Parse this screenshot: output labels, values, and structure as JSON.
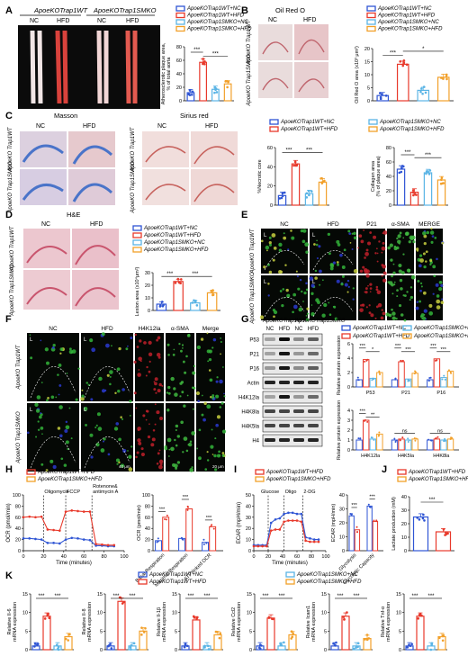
{
  "colors": {
    "wt_nc": "#2f55d4",
    "wt_hfd": "#e8392b",
    "smko_nc": "#5ab4e5",
    "smko_hfd": "#f2a02a",
    "bg_dark": "#111111",
    "stain_pink": "#e4a7b3",
    "masson_blue": "#4a74c9"
  },
  "legend4": {
    "wt_nc": "ApoeKOTrap1WT+NC",
    "wt_hfd": "ApoeKOTrap1WT+HFD",
    "smko_nc": "ApoeKOTrap1SMKO+NC",
    "smko_hfd": "ApoeKOTrap1SMKO+HFD"
  },
  "legend2": {
    "wt_hfd": "ApoeKOTrap1WT+HFD",
    "smko_hfd": "ApoeKOTrap1SMKO+HFD"
  },
  "sig": {
    "s3": "***",
    "s2": "**",
    "s1": "*",
    "ns": "ns"
  },
  "panelA": {
    "label": "A",
    "group_wt": "ApoeKOTrap1WT",
    "group_smko": "ApoeKOTrap1SMKO",
    "nc": "NC",
    "hfd": "HFD",
    "ylabel1": "Atherosclerotic plaque area,",
    "ylabel2": "% of total aorta",
    "ticks": [
      "0",
      "20",
      "40",
      "60",
      "80"
    ]
  },
  "panelB": {
    "label": "B",
    "title": "Oil Red O",
    "nc": "NC",
    "hfd": "HFD",
    "row_wt": "ApoeKO Trap1WT",
    "row_smko": "ApoeKO Trap1SMKO",
    "ylabel": "Oil Red O area (x10³ μm²)",
    "ticks": [
      "0",
      "5",
      "10",
      "15",
      "20"
    ]
  },
  "panelC": {
    "label": "C",
    "title_masson": "Masson",
    "title_sirius": "Sirius red",
    "nc": "NC",
    "hfd": "HFD",
    "row_wt": "ApoeKO Trap1WT",
    "row_smko": "ApoeKO Trap1SMKO",
    "ylabel_necrotic": "%Necrotic core",
    "ticks_necrotic": [
      "0",
      "20",
      "40",
      "60"
    ],
    "ylabel_collagen1": "Collagen area",
    "ylabel_collagen2": "(% of plaque area)",
    "ticks_collagen": [
      "0",
      "20",
      "40",
      "60",
      "80"
    ]
  },
  "panelD": {
    "label": "D",
    "title": "H&E",
    "nc": "NC",
    "hfd": "HFD",
    "row_wt": "ApoeKO Trap1WT",
    "row_smko": "ApoeKO Trap1SMKO",
    "ylabel": "Lesion area (x10⁴μm²)",
    "ticks": [
      "0",
      "10",
      "20",
      "30"
    ]
  },
  "panelE": {
    "label": "E",
    "cols": [
      "NC",
      "HFD",
      "P21",
      "α-SMA",
      "MERGE"
    ],
    "row_wt": "ApoeKO Trap1WT",
    "row_smko": "ApoeKO Trap1SMKO",
    "L": "L"
  },
  "panelF": {
    "label": "F",
    "cols": [
      "NC",
      "HFD",
      "H4K12la",
      "α-SMA",
      "Merge"
    ],
    "row_wt": "ApoeKO Trap1WT",
    "row_smko": "ApoeKO Trap1SMKO",
    "L": "L",
    "scale1": "40 μm",
    "scale2": "20 μm"
  },
  "panelG": {
    "label": "G",
    "group_wt": "ApoeKOTrap1WT",
    "group_smko": "ApoeKOTrap1SMKO",
    "lanes": [
      "NC",
      "HFD",
      "NC",
      "HFD"
    ],
    "blots": [
      "P53",
      "P21",
      "P16",
      "Actin",
      "H4K12la",
      "H4K8la",
      "H4K5la",
      "H4"
    ],
    "ylabel": "Relative protein expression",
    "top_cats": [
      "P53",
      "P21",
      "P16"
    ],
    "bottom_cats": [
      "H4K12la",
      "H4K5la",
      "H4K8la"
    ],
    "ticks_top": [
      "0",
      "2",
      "4",
      "6"
    ],
    "ticks_bottom": [
      "0",
      "1",
      "2",
      "3",
      "4"
    ]
  },
  "panelH": {
    "label": "H",
    "annot": [
      "Oligomycin",
      "FCCP",
      "Rotenone&",
      "antimycin A"
    ],
    "ylabel": "OCR (pmol/min)",
    "xlabel": "Time (minutes)",
    "xticks": [
      "0",
      "20",
      "40",
      "60",
      "80",
      "100"
    ],
    "yticks": [
      "0",
      "20",
      "40",
      "60",
      "80",
      "100"
    ],
    "bar_cats": [
      "Basal Respiration",
      "Maximal Respiration",
      "ATP-linked OCR"
    ],
    "bar_yticks": [
      "0",
      "20",
      "40",
      "60",
      "80",
      "100"
    ]
  },
  "panelI": {
    "label": "I",
    "annot": [
      "Glucose",
      "Oligo",
      "2-DG"
    ],
    "ylabel": "ECAR (mpH/min)",
    "xlabel": "Time (minutes)",
    "xticks": [
      "0",
      "20",
      "40",
      "60",
      "80",
      "100"
    ],
    "yticks": [
      "0",
      "10",
      "20",
      "30",
      "40",
      "50"
    ],
    "bar_cats": [
      "Glycolysis",
      "Glycolytic Capacity"
    ],
    "bar_yticks": [
      "0",
      "10",
      "20",
      "30",
      "40"
    ]
  },
  "panelJ": {
    "label": "J",
    "ylabel": "Lactate production (mM)",
    "yticks": [
      "0",
      "10",
      "20",
      "30",
      "40"
    ]
  },
  "panelK": {
    "label": "K",
    "genes": [
      "Relative Il-6 mRNA expression",
      "Relative Il-8 mRNA expression",
      "Relative Il-1β mRNA expression",
      "Relative Ccl2 mRNA expression",
      "Relative Icam1 mRNA expression",
      "Relative Tnf-α mRNA expression"
    ],
    "ticks": [
      "0",
      "5",
      "10",
      "15"
    ],
    "ticks_small": [
      "0",
      "5",
      "10"
    ]
  },
  "chart_data": [
    {
      "type": "bar",
      "panel": "A",
      "categories": [
        "WT+NC",
        "WT+HFD",
        "SMKO+NC",
        "SMKO+HFD"
      ],
      "values": [
        12,
        57,
        17,
        25
      ],
      "ylim": [
        0,
        80
      ],
      "ylabel": "Atherosclerotic plaque area, % of total aorta"
    },
    {
      "type": "bar",
      "panel": "B",
      "categories": [
        "WT+NC",
        "WT+HFD",
        "SMKO+NC",
        "SMKO+HFD"
      ],
      "values": [
        2,
        14,
        4,
        9
      ],
      "ylim": [
        0,
        20
      ],
      "ylabel": "Oil Red O area (x10³ μm²)"
    },
    {
      "type": "bar",
      "panel": "C-necrotic",
      "categories": [
        "WT+NC",
        "WT+HFD",
        "SMKO+NC",
        "SMKO+HFD"
      ],
      "values": [
        10,
        43,
        12,
        24
      ],
      "ylim": [
        0,
        60
      ],
      "ylabel": "%Necrotic core"
    },
    {
      "type": "bar",
      "panel": "C-collagen",
      "categories": [
        "WT+NC",
        "WT+HFD",
        "SMKO+NC",
        "SMKO+HFD"
      ],
      "values": [
        50,
        18,
        45,
        35
      ],
      "ylim": [
        0,
        80
      ],
      "ylabel": "Collagen area (% of plaque area)"
    },
    {
      "type": "bar",
      "panel": "D",
      "categories": [
        "WT+NC",
        "WT+HFD",
        "SMKO+NC",
        "SMKO+HFD"
      ],
      "values": [
        5,
        23,
        6,
        14
      ],
      "ylim": [
        0,
        30
      ],
      "ylabel": "Lesion area (x10⁴μm²)"
    },
    {
      "type": "bar",
      "panel": "G-top",
      "categories": [
        "P53",
        "P21",
        "P16"
      ],
      "series": [
        {
          "name": "ApoeKOTrap1WT+NC",
          "values": [
            1.0,
            1.0,
            1.0
          ]
        },
        {
          "name": "ApoeKOTrap1WT+HFD",
          "values": [
            3.8,
            3.5,
            3.9
          ]
        },
        {
          "name": "ApoeKOTrap1SMKO+NC",
          "values": [
            1.2,
            1.1,
            1.3
          ]
        },
        {
          "name": "ApoeKOTrap1SMKO+HFD",
          "values": [
            2.0,
            1.9,
            2.2
          ]
        }
      ],
      "ylim": [
        0,
        6
      ],
      "ylabel": "Relative protein expression"
    },
    {
      "type": "bar",
      "panel": "G-bottom",
      "categories": [
        "H4K12la",
        "H4K5la",
        "H4K8la"
      ],
      "series": [
        {
          "name": "ApoeKOTrap1WT+NC",
          "values": [
            1.0,
            1.0,
            1.0
          ]
        },
        {
          "name": "ApoeKOTrap1WT+HFD",
          "values": [
            3.0,
            1.1,
            1.1
          ]
        },
        {
          "name": "ApoeKOTrap1SMKO+NC",
          "values": [
            1.1,
            1.0,
            1.0
          ]
        },
        {
          "name": "ApoeKOTrap1SMKO+HFD",
          "values": [
            1.6,
            1.1,
            1.1
          ]
        }
      ],
      "ylim": [
        0,
        4
      ],
      "ylabel": "Relative protein expression"
    },
    {
      "type": "line",
      "panel": "H-line",
      "x": [
        0,
        6,
        12,
        18,
        24,
        30,
        36,
        42,
        48,
        54,
        60,
        66,
        72,
        78,
        84,
        90
      ],
      "series": [
        {
          "name": "ApoeKOTrap1WT+HFD",
          "values": [
            22,
            22,
            21,
            20,
            14,
            14,
            13,
            20,
            23,
            22,
            20,
            19,
            9,
            9,
            8,
            8
          ]
        },
        {
          "name": "ApoeKOTrap1SMKO+HFD",
          "values": [
            60,
            61,
            60,
            61,
            38,
            37,
            36,
            70,
            72,
            71,
            70,
            70,
            12,
            11,
            10,
            10
          ]
        }
      ],
      "xlim": [
        0,
        100
      ],
      "ylim": [
        0,
        100
      ],
      "xlabel": "Time (minutes)",
      "ylabel": "OCR (pmol/min)"
    },
    {
      "type": "bar",
      "panel": "H-bar",
      "categories": [
        "Basal Respiration",
        "Maximal Respiration",
        "ATP-linked OCR"
      ],
      "series": [
        {
          "name": "ApoeKOTrap1WT+HFD",
          "values": [
            18,
            22,
            15
          ]
        },
        {
          "name": "ApoeKOTrap1SMKO+HFD",
          "values": [
            60,
            75,
            43
          ]
        }
      ],
      "ylim": [
        0,
        100
      ],
      "ylabel": "OCR (pmol/min)"
    },
    {
      "type": "line",
      "panel": "I-line",
      "x": [
        0,
        6,
        12,
        18,
        24,
        30,
        36,
        42,
        48,
        54,
        60,
        66,
        72,
        78,
        84,
        90
      ],
      "series": [
        {
          "name": "ApoeKOTrap1WT+HFD",
          "values": [
            5,
            5,
            5,
            5,
            25,
            28,
            29,
            33,
            34,
            34,
            33,
            33,
            12,
            11,
            10,
            10
          ]
        },
        {
          "name": "ApoeKOTrap1SMKO+HFD",
          "values": [
            4,
            4,
            4,
            4,
            18,
            19,
            19,
            26,
            27,
            27,
            27,
            26,
            9,
            8,
            8,
            8
          ]
        }
      ],
      "xlim": [
        0,
        100
      ],
      "ylim": [
        0,
        50
      ],
      "xlabel": "Time (minutes)",
      "ylabel": "ECAR (mpH/min)"
    },
    {
      "type": "bar",
      "panel": "I-bar",
      "categories": [
        "Glycolysis",
        "Glycolytic Capacity"
      ],
      "series": [
        {
          "name": "ApoeKOTrap1WT+HFD",
          "values": [
            25,
            32
          ]
        },
        {
          "name": "ApoeKOTrap1SMKO+HFD",
          "values": [
            15,
            21
          ]
        }
      ],
      "ylim": [
        0,
        40
      ],
      "ylabel": "ECAR (mpH/min)"
    },
    {
      "type": "bar",
      "panel": "J",
      "categories": [
        "WT+HFD",
        "SMKO+HFD"
      ],
      "values": [
        25,
        14
      ],
      "ylim": [
        0,
        40
      ],
      "ylabel": "Lactate production (mM)"
    },
    {
      "type": "bar",
      "panel": "K",
      "categories": [
        "WT+NC",
        "WT+HFD",
        "SMKO+NC",
        "SMKO+HFD"
      ],
      "series": [
        {
          "name": "Il-6",
          "values": [
            1,
            9,
            1,
            3.5
          ]
        },
        {
          "name": "Il-8",
          "values": [
            1,
            13,
            1,
            5
          ]
        },
        {
          "name": "Il-1β",
          "values": [
            1,
            8,
            1,
            4
          ]
        },
        {
          "name": "Ccl2",
          "values": [
            1,
            8.5,
            1,
            4
          ]
        },
        {
          "name": "Icam1",
          "values": [
            1,
            9,
            1,
            3
          ]
        },
        {
          "name": "Tnf-α",
          "values": [
            1,
            9,
            1,
            3.5
          ]
        }
      ]
    }
  ]
}
